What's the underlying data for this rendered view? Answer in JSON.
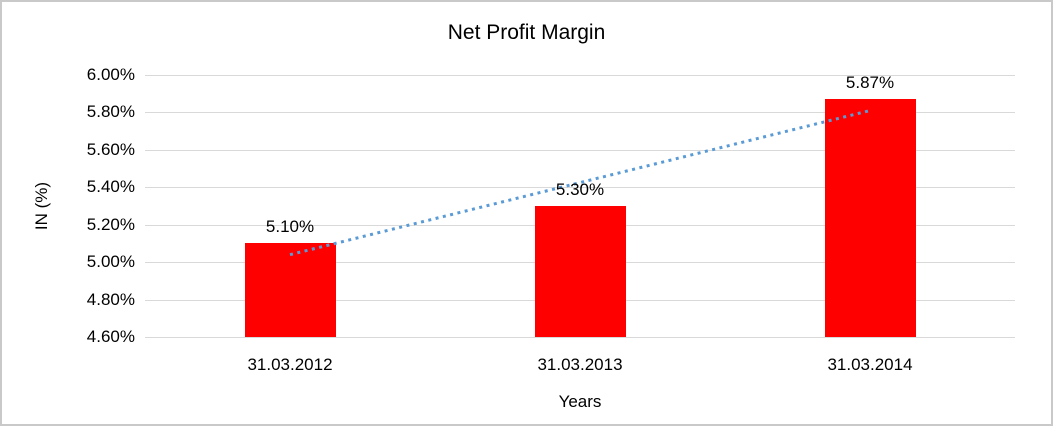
{
  "chart_data": {
    "type": "bar",
    "title": "Net Profit Margin",
    "xlabel": "Years",
    "ylabel": "IN (%)",
    "categories": [
      "31.03.2012",
      "31.03.2013",
      "31.03.2014"
    ],
    "values": [
      5.1,
      5.3,
      5.87
    ],
    "data_labels": [
      "5.10%",
      "5.30%",
      "5.87%"
    ],
    "ylim": [
      4.6,
      6.0
    ],
    "ytick_step": 0.2,
    "ytick_labels": [
      "4.60%",
      "4.80%",
      "5.00%",
      "5.20%",
      "5.40%",
      "5.60%",
      "5.80%",
      "6.00%"
    ],
    "grid": true,
    "legend": "none",
    "bar_color": "#ff0000",
    "gridline_color": "#d9d9d9",
    "trendline": {
      "type": "linear",
      "style": "dotted",
      "color": "#5b9bd5",
      "endpoint_values": [
        5.04,
        5.81
      ]
    }
  }
}
